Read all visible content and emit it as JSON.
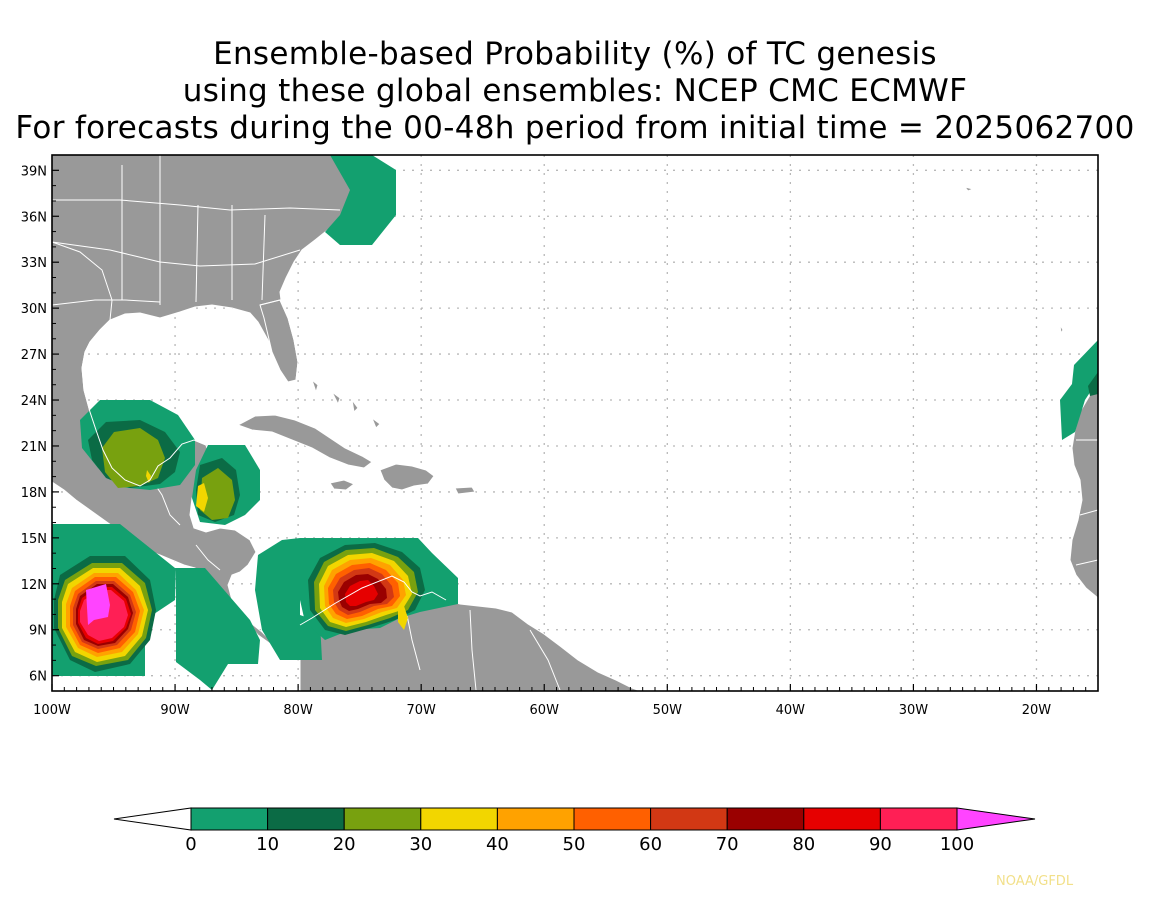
{
  "title": {
    "line1": "Ensemble-based Probability (%) of TC genesis",
    "line2": "using these global ensembles:   NCEP CMC ECMWF",
    "line3": "For forecasts during the 00-48h period from initial time = 2025062700"
  },
  "map": {
    "lat_labels": [
      "39N",
      "36N",
      "33N",
      "30N",
      "27N",
      "24N",
      "21N",
      "18N",
      "15N",
      "12N",
      "9N",
      "6N"
    ],
    "lon_labels": [
      "100W",
      "90W",
      "80W",
      "70W",
      "60W",
      "50W",
      "40W",
      "30W",
      "20W"
    ],
    "colors": {
      "land": "#999999",
      "ocean": "#ffffff",
      "grid": "#b0b0b0"
    }
  },
  "colorbar": {
    "labels": [
      "0",
      "10",
      "20",
      "30",
      "40",
      "50",
      "60",
      "70",
      "80",
      "90",
      "100"
    ],
    "colors": [
      "#13a06f",
      "#0b6b45",
      "#78a10f",
      "#f2d600",
      "#ffa200",
      "#ff6000",
      "#d23814",
      "#9a0000",
      "#e60000",
      "#ff1f55"
    ],
    "below_color": "#ffffff",
    "above_color": "#ff44ff"
  },
  "credit": "NOAA/GFDL"
}
